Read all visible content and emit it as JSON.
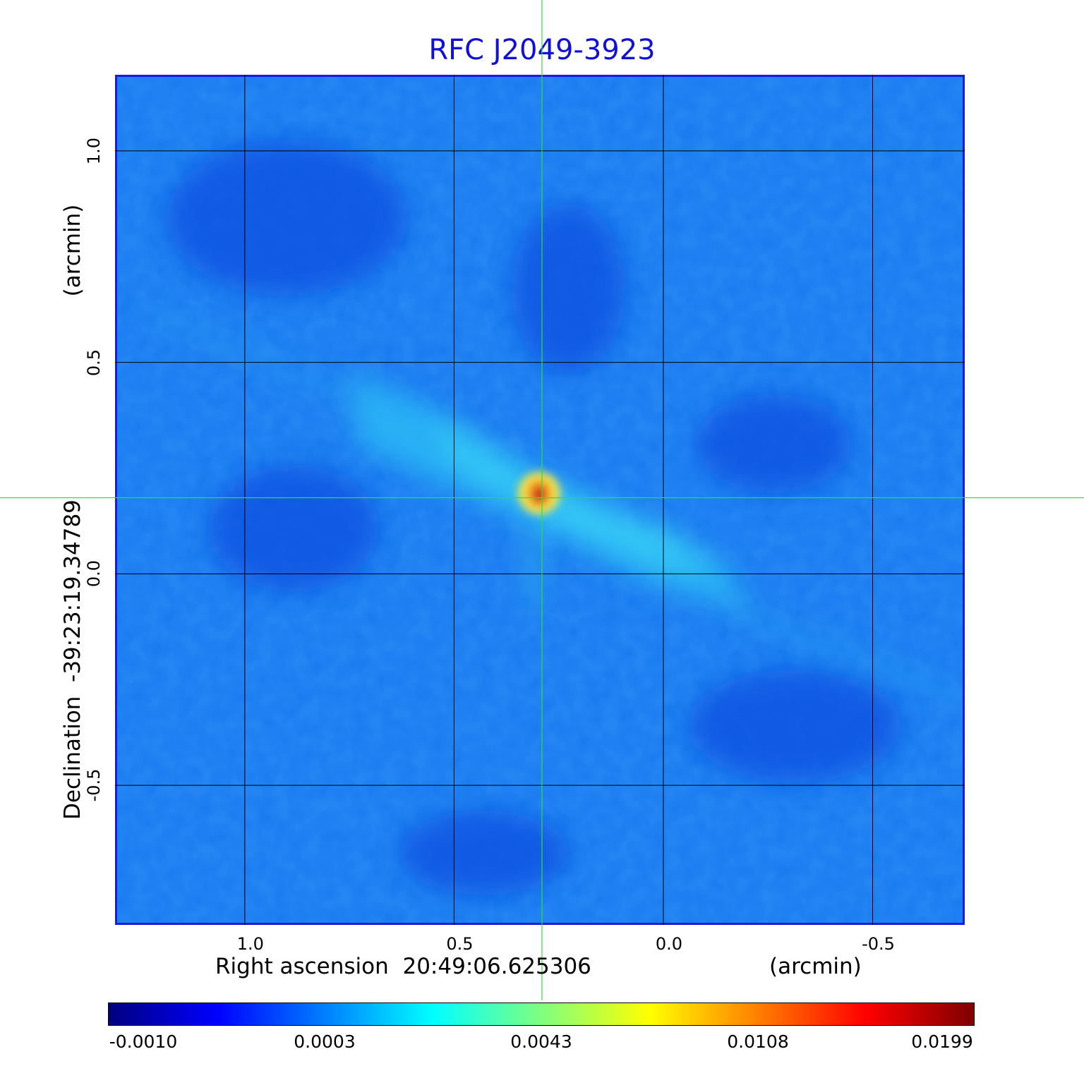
{
  "chart_data": {
    "type": "heatmap",
    "title": "RFC J2049-3923",
    "xlabel": "Right ascension  20:49:06.625306",
    "xunit": "(arcmin)",
    "ylabel": "Declination  -39:23:19.34789",
    "yunit": "(arcmin)",
    "x_ticks": [
      "1.0",
      "0.5",
      "0.0",
      "-0.5"
    ],
    "x_tick_values": [
      1.0,
      0.5,
      0.0,
      -0.5
    ],
    "y_ticks": [
      "1.0",
      "0.5",
      "0.0",
      "-0.5"
    ],
    "y_tick_values": [
      1.0,
      0.5,
      0.0,
      -0.5
    ],
    "xlim": [
      1.31,
      -0.72
    ],
    "ylim": [
      -0.83,
      1.18
    ],
    "grid": true,
    "crosshair": {
      "x": 0.29,
      "y": 0.18
    },
    "peak": {
      "x": 0.29,
      "y": 0.19,
      "value": 0.0199
    },
    "colorbar": {
      "colormap": "jet",
      "tick_labels": [
        "-0.0010",
        "0.0003",
        "0.0043",
        "0.0108",
        "0.0199"
      ],
      "min": -0.001,
      "max": 0.0199
    },
    "colors": {
      "background": "#1a7cf0",
      "title": "#1010d8",
      "crosshair": "#30e030",
      "frame": "#1a1ae0"
    }
  }
}
